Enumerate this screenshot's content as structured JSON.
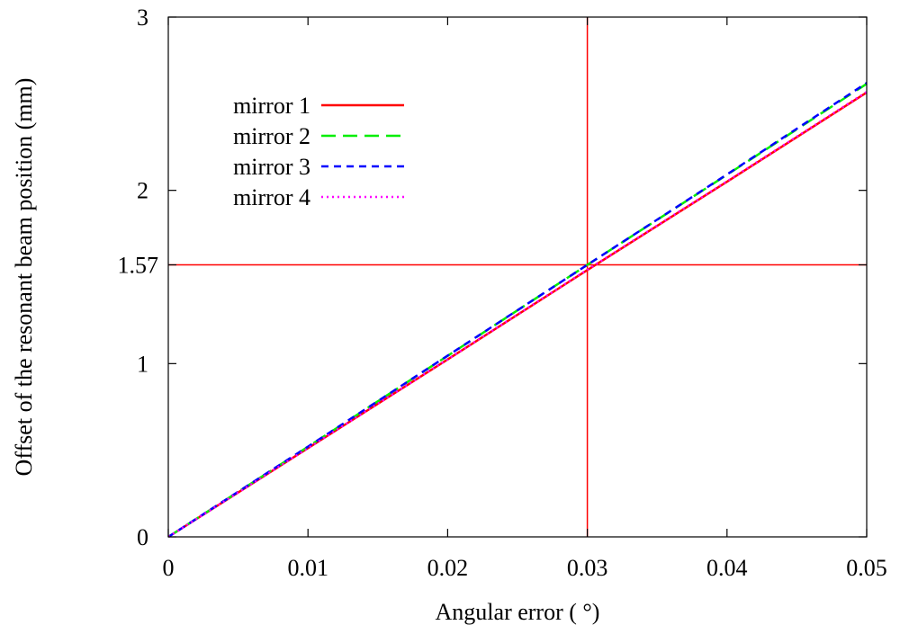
{
  "chart_data": {
    "type": "line",
    "title": "",
    "xlabel": "Angular error ( °)",
    "ylabel": "Offset of the resonant beam position (mm)",
    "xlim": [
      0,
      0.05
    ],
    "ylim": [
      0,
      3
    ],
    "x_ticks": [
      0,
      0.01,
      0.02,
      0.03,
      0.04,
      0.05
    ],
    "x_tick_labels": [
      "0",
      "0.01",
      "0.02",
      "0.03",
      "0.04",
      "0.05"
    ],
    "y_ticks": [
      0,
      1,
      2,
      3
    ],
    "y_tick_labels": [
      "0",
      "1",
      "2",
      "3"
    ],
    "grid": false,
    "legend_position": "top-left",
    "series": [
      {
        "name": "mirror 1",
        "color": "#ff0000",
        "dash": "solid",
        "x": [
          0,
          0.01,
          0.02,
          0.03,
          0.04,
          0.05
        ],
        "y": [
          0,
          0.512,
          1.024,
          1.54,
          2.05,
          2.565
        ]
      },
      {
        "name": "mirror 2",
        "color": "#00ee00",
        "dash": "dashed",
        "x": [
          0,
          0.01,
          0.02,
          0.03,
          0.04,
          0.05
        ],
        "y": [
          0,
          0.52,
          1.045,
          1.57,
          2.09,
          2.615
        ]
      },
      {
        "name": "mirror 3",
        "color": "#0000ff",
        "dash": "short-dashed",
        "x": [
          0,
          0.01,
          0.02,
          0.03,
          0.04,
          0.05
        ],
        "y": [
          0,
          0.521,
          1.046,
          1.57,
          2.092,
          2.62
        ]
      },
      {
        "name": "mirror 4",
        "color": "#ff00ff",
        "dash": "dotted",
        "x": [
          0,
          0.01,
          0.02,
          0.03,
          0.04,
          0.05
        ],
        "y": [
          0,
          0.512,
          1.025,
          1.542,
          2.052,
          2.568
        ]
      }
    ],
    "annotations": {
      "vertical_line_x": 0.03,
      "horizontal_line_y": 1.57,
      "horizontal_line_label": "1.57",
      "line_color": "#ff0000"
    }
  }
}
